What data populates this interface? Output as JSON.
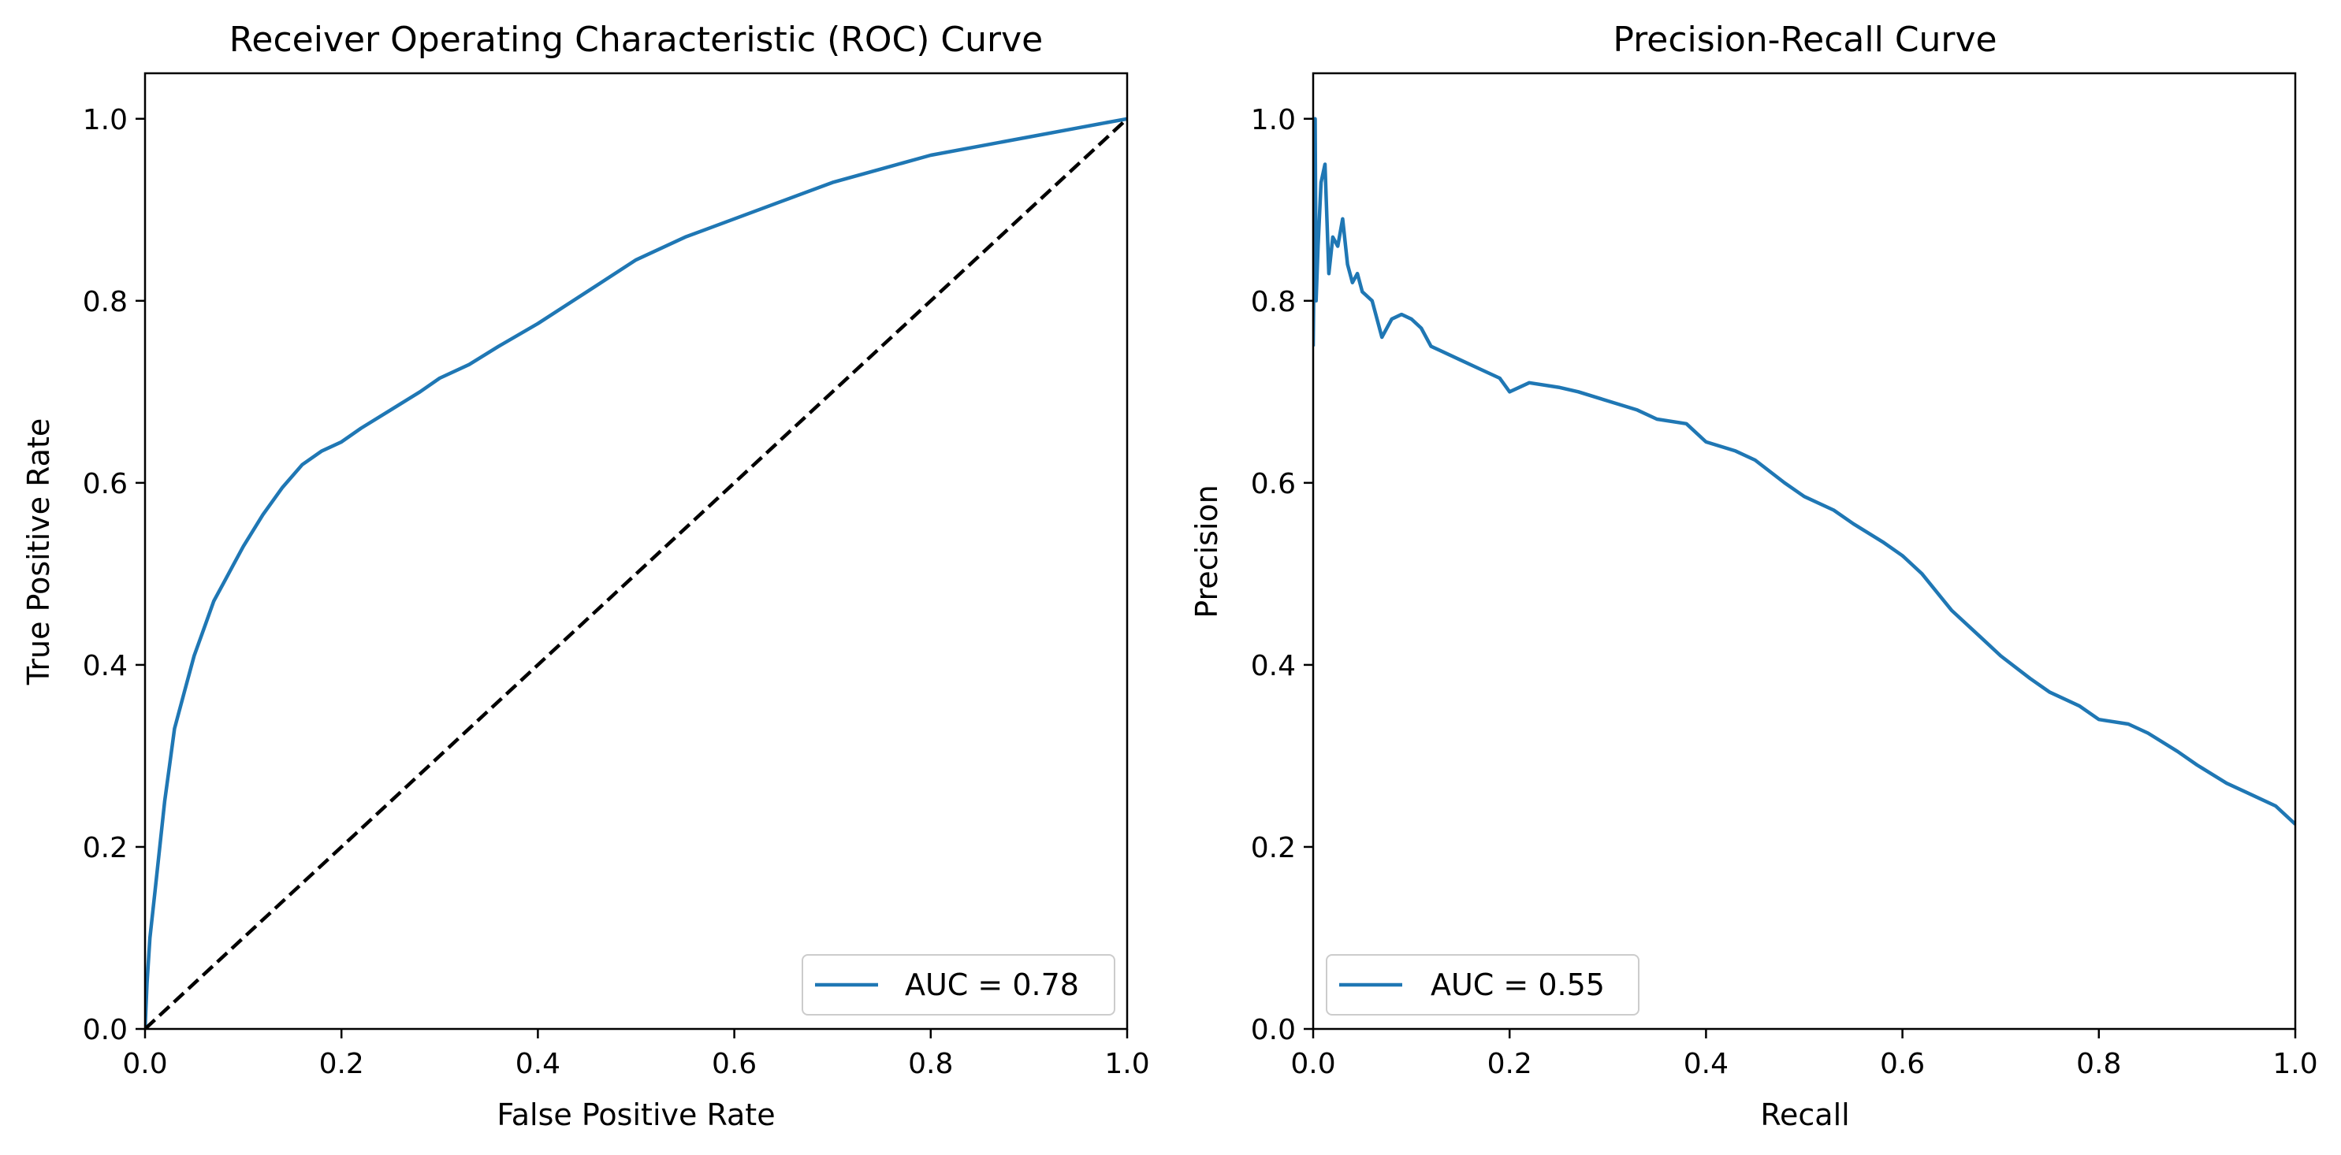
{
  "figure": {
    "background": "#ffffff",
    "line_color": "#1f77b4",
    "diagonal_color": "#000000"
  },
  "chart_data": [
    {
      "type": "line",
      "title": "Receiver Operating Characteristic (ROC) Curve",
      "xlabel": "False Positive Rate",
      "ylabel": "True Positive Rate",
      "xlim": [
        0,
        1
      ],
      "ylim": [
        0,
        1.05
      ],
      "xticks": [
        "0.0",
        "0.2",
        "0.4",
        "0.6",
        "0.8",
        "1.0"
      ],
      "yticks": [
        "0.0",
        "0.2",
        "0.4",
        "0.6",
        "0.8",
        "1.0"
      ],
      "grid": false,
      "legend_position": "lower right",
      "series": [
        {
          "name": "AUC = 0.78",
          "color": "#1f77b4",
          "style": "solid",
          "x": [
            0.0,
            0.002,
            0.005,
            0.01,
            0.015,
            0.02,
            0.025,
            0.03,
            0.04,
            0.05,
            0.06,
            0.07,
            0.08,
            0.09,
            0.1,
            0.12,
            0.14,
            0.16,
            0.18,
            0.2,
            0.22,
            0.25,
            0.28,
            0.3,
            0.33,
            0.36,
            0.4,
            0.45,
            0.5,
            0.55,
            0.6,
            0.65,
            0.7,
            0.75,
            0.8,
            0.85,
            0.9,
            0.95,
            0.98,
            1.0
          ],
          "y": [
            0.0,
            0.05,
            0.1,
            0.15,
            0.2,
            0.25,
            0.29,
            0.33,
            0.37,
            0.41,
            0.44,
            0.47,
            0.49,
            0.51,
            0.53,
            0.565,
            0.595,
            0.62,
            0.635,
            0.645,
            0.66,
            0.68,
            0.7,
            0.715,
            0.73,
            0.75,
            0.775,
            0.81,
            0.845,
            0.87,
            0.89,
            0.91,
            0.93,
            0.945,
            0.96,
            0.97,
            0.98,
            0.99,
            0.996,
            1.0
          ]
        },
        {
          "name": "",
          "color": "#000000",
          "style": "dashed",
          "x": [
            0,
            1
          ],
          "y": [
            0,
            1
          ]
        }
      ]
    },
    {
      "type": "line",
      "title": "Precision-Recall Curve",
      "xlabel": "Recall",
      "ylabel": "Precision",
      "xlim": [
        0,
        1
      ],
      "ylim": [
        0,
        1.05
      ],
      "xticks": [
        "0.0",
        "0.2",
        "0.4",
        "0.6",
        "0.8",
        "1.0"
      ],
      "yticks": [
        "0.0",
        "0.2",
        "0.4",
        "0.6",
        "0.8",
        "1.0"
      ],
      "grid": false,
      "legend_position": "lower left",
      "series": [
        {
          "name": "AUC = 0.55",
          "color": "#1f77b4",
          "style": "solid",
          "x": [
            0.0,
            0.001,
            0.002,
            0.003,
            0.005,
            0.008,
            0.012,
            0.016,
            0.02,
            0.025,
            0.03,
            0.035,
            0.04,
            0.045,
            0.05,
            0.06,
            0.07,
            0.08,
            0.09,
            0.1,
            0.11,
            0.12,
            0.13,
            0.15,
            0.17,
            0.19,
            0.2,
            0.21,
            0.22,
            0.25,
            0.27,
            0.3,
            0.33,
            0.35,
            0.38,
            0.4,
            0.43,
            0.45,
            0.48,
            0.5,
            0.53,
            0.55,
            0.58,
            0.6,
            0.62,
            0.65,
            0.68,
            0.7,
            0.73,
            0.75,
            0.78,
            0.8,
            0.83,
            0.85,
            0.88,
            0.9,
            0.93,
            0.95,
            0.98,
            1.0
          ],
          "y": [
            0.75,
            0.85,
            1.0,
            0.8,
            0.86,
            0.93,
            0.95,
            0.83,
            0.87,
            0.86,
            0.89,
            0.84,
            0.82,
            0.83,
            0.81,
            0.8,
            0.76,
            0.78,
            0.785,
            0.78,
            0.77,
            0.75,
            0.745,
            0.735,
            0.725,
            0.715,
            0.7,
            0.705,
            0.71,
            0.705,
            0.7,
            0.69,
            0.68,
            0.67,
            0.665,
            0.645,
            0.635,
            0.625,
            0.6,
            0.585,
            0.57,
            0.555,
            0.535,
            0.52,
            0.5,
            0.46,
            0.43,
            0.41,
            0.385,
            0.37,
            0.355,
            0.34,
            0.335,
            0.325,
            0.305,
            0.29,
            0.27,
            0.26,
            0.245,
            0.225
          ]
        }
      ]
    }
  ]
}
